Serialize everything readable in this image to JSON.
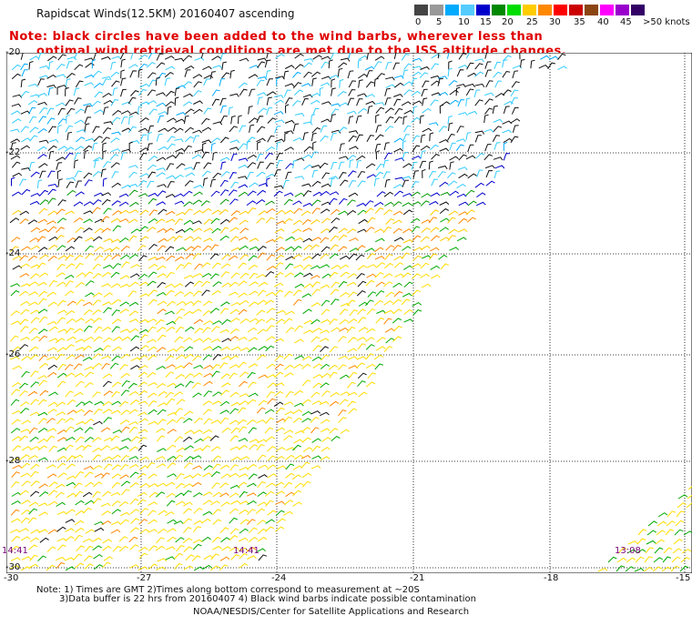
{
  "title": "Rapidscat Winds(12.5KM) 20160407 ascending",
  "note_line1": "Note: black circles have been added to the wind barbs, wherever less than",
  "note_line2": "optimal wind retrieval conditions are met due to the ISS altitude changes.",
  "legend": {
    "labels": [
      "0",
      "5",
      "10",
      "15",
      "20",
      "25",
      "30",
      "35",
      "40",
      "45",
      ">50 knots"
    ],
    "colors": [
      "#444444",
      "#999999",
      "#00aaff",
      "#55ccff",
      "#0000cc",
      "#008800",
      "#00dd00",
      "#ffcc00",
      "#ff8800",
      "#ff0000",
      "#cc0000",
      "#8b4513",
      "#ff00ff",
      "#9900cc",
      "#330066"
    ]
  },
  "y_axis": {
    "labels": [
      "-20",
      "-22",
      "-24",
      "-26",
      "-28",
      "-30"
    ]
  },
  "x_axis": {
    "labels": [
      "-30",
      "-27",
      "-24",
      "-21",
      "-18",
      "-15"
    ]
  },
  "time_labels": [
    "14:41",
    "14:41",
    "13:08"
  ],
  "footer": {
    "line1": "Note: 1) Times are GMT 2)Times along bottom correspond to measurement at ~20S",
    "line2": "3)Data buffer is 22 hrs from 20160407 4) Black wind barbs indicate possible contamination",
    "line3": "NOAA/NESDIS/Center for Satellite Applications and Research"
  }
}
